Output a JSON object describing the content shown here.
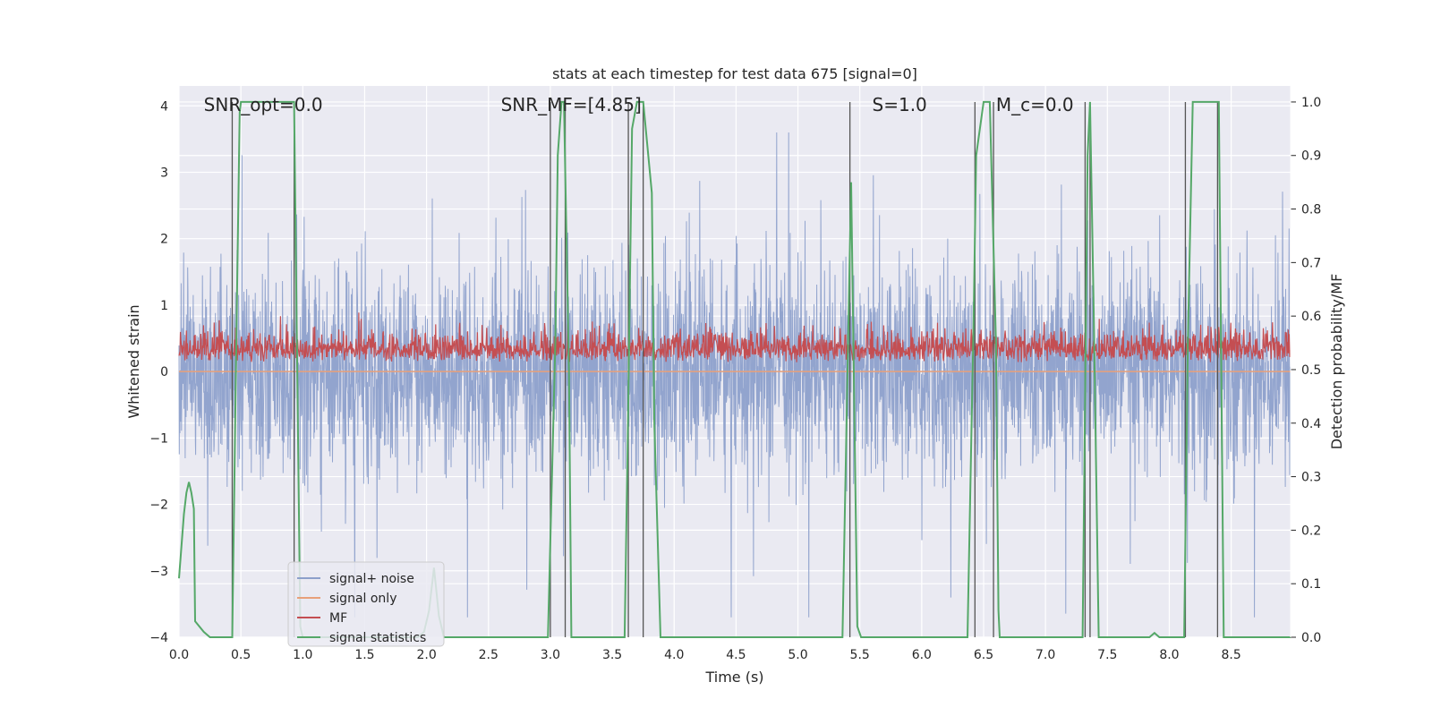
{
  "chart_data": {
    "type": "line",
    "title": "stats at each timestep for test data 675 [signal=0]",
    "xlabel": "Time (s)",
    "ylabel_left": "Whitened strain",
    "ylabel_right": "Detection probability/MF",
    "xlim": [
      0.0,
      8.98
    ],
    "ylim_left": [
      -4.0,
      4.3
    ],
    "ylim_right": [
      -0.0,
      1.03
    ],
    "x_ticks": [
      0.0,
      0.5,
      1.0,
      1.5,
      2.0,
      2.5,
      3.0,
      3.5,
      4.0,
      4.5,
      5.0,
      5.5,
      6.0,
      6.5,
      7.0,
      7.5,
      8.0,
      8.5
    ],
    "x_tick_labels": [
      "0.0",
      "0.5",
      "1.0",
      "1.5",
      "2.0",
      "2.5",
      "3.0",
      "3.5",
      "4.0",
      "4.5",
      "5.0",
      "5.5",
      "6.0",
      "6.5",
      "7.0",
      "7.5",
      "8.0",
      "8.5"
    ],
    "y_left_ticks": [
      -4,
      -3,
      -2,
      -1,
      0,
      1,
      2,
      3,
      4
    ],
    "y_left_tick_labels": [
      "−4",
      "−3",
      "−2",
      "−1",
      "0",
      "1",
      "2",
      "3",
      "4"
    ],
    "y_right_ticks": [
      0.0,
      0.1,
      0.2,
      0.3,
      0.4,
      0.5,
      0.6,
      0.7,
      0.8,
      0.9,
      1.0
    ],
    "y_right_tick_labels": [
      "0.0",
      "0.1",
      "0.2",
      "0.3",
      "0.4",
      "0.5",
      "0.6",
      "0.7",
      "0.8",
      "0.9",
      "1.0"
    ],
    "grid": true,
    "legend_position": "lower-left",
    "annotations": [
      {
        "text": "SNR_opt=0.0",
        "x": 0.2
      },
      {
        "text": "SNR_MF=[4.85]",
        "x": 2.6
      },
      {
        "text": "S=1.0",
        "x": 5.6
      },
      {
        "text": "M_c=0.0",
        "x": 6.6
      }
    ],
    "series": [
      {
        "name": "signal+ noise",
        "axis": "left",
        "color": "#8da0cb",
        "description": "whitened noise, amplitude roughly ±1.6 with spikes up to ±3.6",
        "range": [
          -3.7,
          3.6
        ]
      },
      {
        "name": "signal only",
        "axis": "left",
        "color": "#e8a07a",
        "values": [
          0.0
        ]
      },
      {
        "name": "MF",
        "axis": "right",
        "color": "#c44e52",
        "level_range": [
          0.49,
          0.62
        ]
      },
      {
        "name": "signal statistics",
        "axis": "right",
        "color": "#55a868",
        "x": [
          0.0,
          0.04,
          0.06,
          0.08,
          0.1,
          0.12,
          0.13,
          0.2,
          0.25,
          0.43,
          0.46,
          0.49,
          0.5,
          0.93,
          0.95,
          0.98,
          1.0,
          1.93,
          1.98,
          2.02,
          2.06,
          2.1,
          2.14,
          2.98,
          3.04,
          3.06,
          3.09,
          3.11,
          3.15,
          3.17,
          3.6,
          3.63,
          3.66,
          3.7,
          3.75,
          3.82,
          3.84,
          3.89,
          5.36,
          5.43,
          5.48,
          5.51,
          6.37,
          6.42,
          6.44,
          6.5,
          6.55,
          6.6,
          6.62,
          6.63,
          7.3,
          7.34,
          7.36,
          7.39,
          7.43,
          7.84,
          7.88,
          7.92,
          8.12,
          8.15,
          8.19,
          8.21,
          8.4,
          8.44,
          8.98
        ],
        "y": [
          0.11,
          0.23,
          0.27,
          0.29,
          0.27,
          0.24,
          0.03,
          0.01,
          0.0,
          0.0,
          0.5,
          0.98,
          1.0,
          1.0,
          0.6,
          0.02,
          0.0,
          0.0,
          0.01,
          0.05,
          0.13,
          0.04,
          0.0,
          0.0,
          0.55,
          0.9,
          1.0,
          1.0,
          0.5,
          0.0,
          0.0,
          0.45,
          0.95,
          1.0,
          1.0,
          0.83,
          0.4,
          0.0,
          0.0,
          0.85,
          0.02,
          0.0,
          0.0,
          0.6,
          0.9,
          1.0,
          1.0,
          0.55,
          0.05,
          0.0,
          0.0,
          0.9,
          1.0,
          0.6,
          0.0,
          0.0,
          0.008,
          0.0,
          0.0,
          0.55,
          1.0,
          1.0,
          1.0,
          0.0,
          0.0
        ]
      }
    ],
    "vertical_markers_x": [
      0.43,
      0.93,
      3.0,
      3.12,
      3.63,
      3.75,
      5.42,
      6.43,
      6.58,
      7.32,
      7.36,
      8.13,
      8.39
    ]
  },
  "colors": {
    "plot_background": "#eaeaf2",
    "grid": "#ffffff",
    "marker": "#555555"
  }
}
